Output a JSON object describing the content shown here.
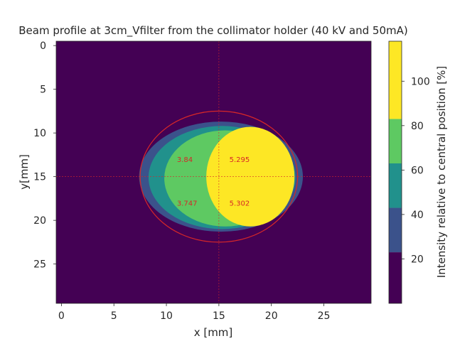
{
  "chart_data": {
    "type": "heatmap",
    "title": "Beam profile at 3cm_Vfilter from the collimator holder (40 kV and 50mA)",
    "xlabel": "x [mm]",
    "ylabel": "y[mm]",
    "xlim": [
      -0.5,
      29.5
    ],
    "ylim": [
      29.5,
      -0.5
    ],
    "x_ticks": [
      0,
      5,
      10,
      15,
      20,
      25
    ],
    "y_ticks": [
      0,
      5,
      10,
      15,
      20,
      25
    ],
    "x_tick_labels": [
      "0",
      "5",
      "10",
      "15",
      "20",
      "25"
    ],
    "y_tick_labels": [
      "0",
      "5",
      "10",
      "15",
      "20",
      "25"
    ],
    "levels": [
      {
        "range": [
          0,
          23
        ],
        "color": "#440154"
      },
      {
        "range": [
          23,
          43
        ],
        "color": "#3b528b"
      },
      {
        "range": [
          43,
          63
        ],
        "color": "#21918c"
      },
      {
        "range": [
          63,
          83
        ],
        "color": "#5ec962"
      },
      {
        "range": [
          83,
          103
        ],
        "color": "#fde725"
      }
    ],
    "contour_regions": [
      {
        "level": 1,
        "center": [
          15.2,
          15.0
        ],
        "rx": 7.8,
        "ry": 6.3
      },
      {
        "level": 2,
        "center": [
          15.3,
          15.1
        ],
        "rx": 7.0,
        "ry": 5.9
      },
      {
        "level": 3,
        "center": [
          15.6,
          15.2
        ],
        "rx": 5.8,
        "ry": 5.5
      },
      {
        "level": 4,
        "center": [
          18.0,
          15.0
        ],
        "rx": 4.2,
        "ry": 5.7
      }
    ],
    "circle": {
      "center": [
        15,
        15
      ],
      "rx": 7.5,
      "ry": 7.5,
      "color": "#d62728"
    },
    "crosshair": {
      "x": 15,
      "y": 15,
      "color": "#d62728"
    },
    "annotations": [
      {
        "x": 11,
        "y": 13.0,
        "text": "3.84"
      },
      {
        "x": 16,
        "y": 13.0,
        "text": "5.295"
      },
      {
        "x": 11,
        "y": 18.0,
        "text": "3.747"
      },
      {
        "x": 16,
        "y": 18.0,
        "text": "5.302"
      }
    ],
    "colorbar": {
      "label": "Intensity relative to central position [%]",
      "range": [
        0,
        118
      ],
      "boundaries": [
        0,
        23,
        43,
        63,
        83,
        103,
        118
      ],
      "colors": [
        "#440154",
        "#3b528b",
        "#21918c",
        "#5ec962",
        "#fde725"
      ],
      "ticks": [
        20,
        40,
        60,
        80,
        100
      ],
      "tick_labels": [
        "20",
        "40",
        "60",
        "80",
        "100"
      ]
    },
    "grid": false
  }
}
